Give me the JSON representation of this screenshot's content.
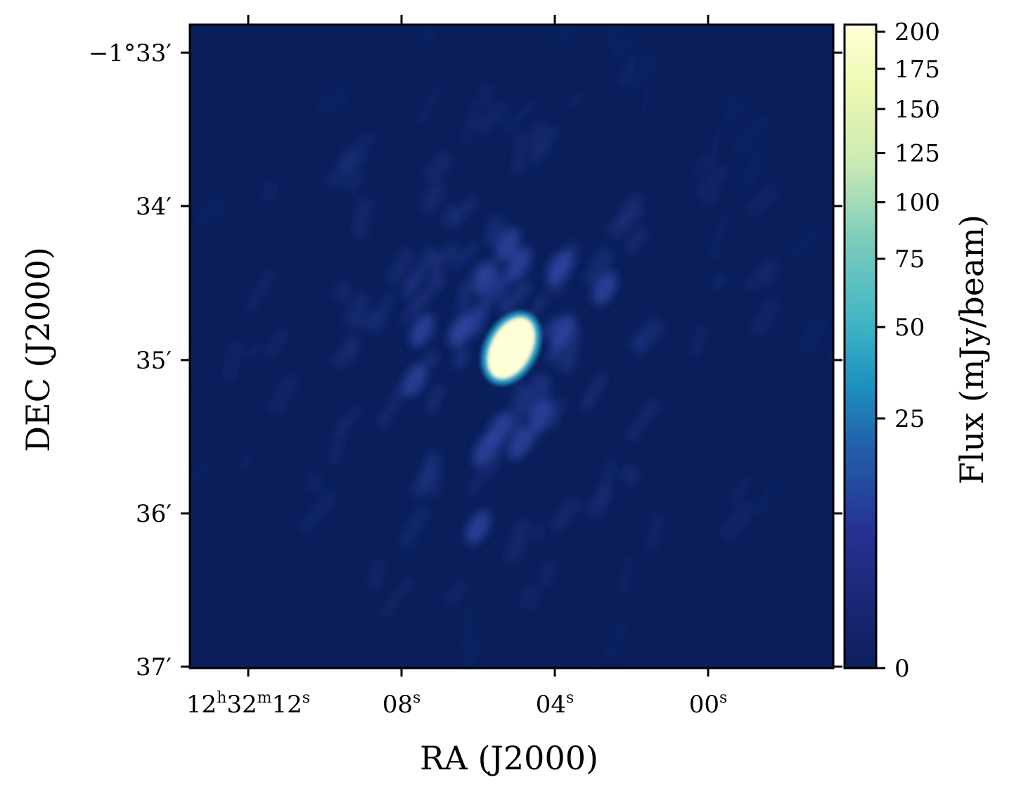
{
  "chart_data": {
    "type": "heatmap",
    "title": "",
    "xlabel": "RA (J2000)",
    "ylabel": "DEC (J2000)",
    "x_ticks": [
      {
        "main": "12",
        "sup1": "h",
        "mid": "32",
        "sup2": "m",
        "end": "12",
        "sup3": "s"
      },
      {
        "main": "08",
        "sup": "s"
      },
      {
        "main": "04",
        "sup": "s"
      },
      {
        "main": "00",
        "sup": "s"
      }
    ],
    "y_ticks": [
      "−1°33′",
      "34′",
      "35′",
      "36′",
      "37′"
    ],
    "colorbar": {
      "label": "Flux (mJy/beam)",
      "ticks": [
        "0",
        "25",
        "50",
        "75",
        "100",
        "125",
        "150",
        "175",
        "200"
      ],
      "tick_values": [
        0,
        25,
        50,
        75,
        100,
        125,
        150,
        175,
        200
      ],
      "range": [
        0,
        205
      ],
      "scale": "nonlinear (stretched)",
      "colormap": "YlGnBu"
    },
    "background_color": "#0b1f5c",
    "source": {
      "peak_mjy_per_beam": 200,
      "shape": "elongated ellipse",
      "position": "center"
    }
  }
}
